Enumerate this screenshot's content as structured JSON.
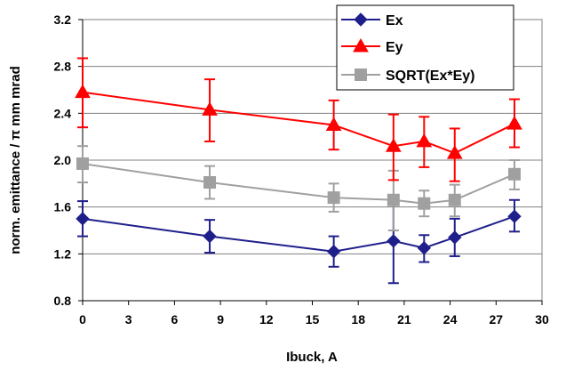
{
  "chart_data": {
    "type": "line",
    "xlabel": "Ibuck, A",
    "ylabel": "norm. emittance / π mm mrad",
    "xlim": [
      0,
      30
    ],
    "ylim": [
      0.8,
      3.2
    ],
    "xticks": [
      0,
      3,
      6,
      9,
      12,
      15,
      18,
      21,
      24,
      27,
      30
    ],
    "yticks": [
      0.8,
      1.2,
      1.6,
      2.0,
      2.4,
      2.8,
      3.2
    ],
    "xtick_labels": [
      "0",
      "3",
      "6",
      "9",
      "12",
      "15",
      "18",
      "21",
      "24",
      "27",
      "30"
    ],
    "ytick_labels": [
      "0.8",
      "1.2",
      "1.6",
      "2.0",
      "2.4",
      "2.8",
      "3.2"
    ],
    "grid": "horizontal",
    "legend_position": "top-right",
    "x": [
      0,
      8.3,
      16.4,
      20.3,
      22.3,
      24.3,
      28.2
    ],
    "series": [
      {
        "name": "Ex",
        "color": "#1f1f8c",
        "marker": "diamond",
        "values": [
          1.5,
          1.35,
          1.22,
          1.31,
          1.25,
          1.34,
          1.52
        ],
        "err_low": [
          1.35,
          1.21,
          1.09,
          0.95,
          1.13,
          1.18,
          1.39
        ],
        "err_high": [
          1.65,
          1.49,
          1.35,
          1.68,
          1.36,
          1.5,
          1.66
        ]
      },
      {
        "name": "Ey",
        "color": "#ff0000",
        "marker": "triangle",
        "values": [
          2.58,
          2.43,
          2.3,
          2.12,
          2.16,
          2.06,
          2.31
        ],
        "err_low": [
          2.28,
          2.16,
          2.09,
          1.83,
          1.94,
          1.82,
          2.11
        ],
        "err_high": [
          2.87,
          2.69,
          2.51,
          2.39,
          2.37,
          2.27,
          2.52
        ]
      },
      {
        "name": "SQRT(Ex*Ey)",
        "color": "#a0a0a0",
        "marker": "square",
        "values": [
          1.97,
          1.81,
          1.68,
          1.66,
          1.63,
          1.66,
          1.88
        ],
        "err_low": [
          1.81,
          1.67,
          1.56,
          1.4,
          1.52,
          1.52,
          1.75
        ],
        "err_high": [
          2.12,
          1.95,
          1.8,
          1.91,
          1.74,
          1.79,
          2.0
        ]
      }
    ]
  }
}
